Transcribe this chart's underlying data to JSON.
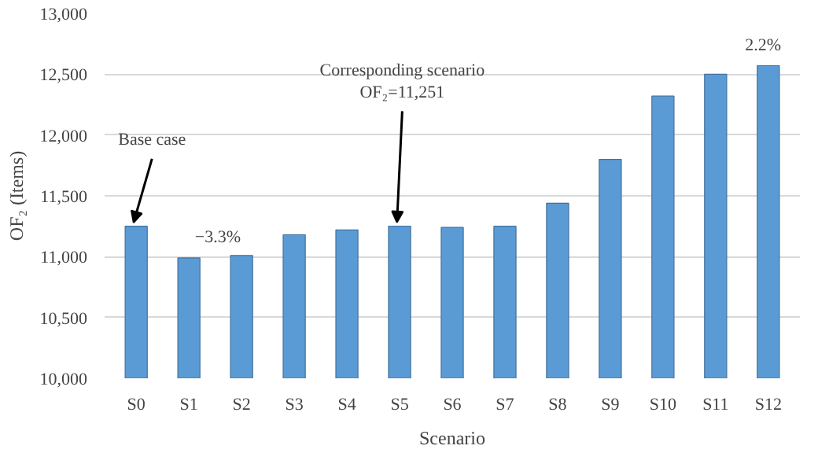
{
  "chart_data": {
    "type": "bar",
    "xlabel": "Scenario",
    "ylabel": "OF₂ (Items)",
    "categories": [
      "S0",
      "S1",
      "S2",
      "S3",
      "S4",
      "S5",
      "S6",
      "S7",
      "S8",
      "S9",
      "S10",
      "S11",
      "S12"
    ],
    "values": [
      11250,
      10990,
      11010,
      11180,
      11220,
      11251,
      11240,
      11250,
      11440,
      11800,
      12320,
      12500,
      12570
    ],
    "color": "#5b9bd5",
    "ylim": [
      10000,
      13000
    ],
    "yticks": [
      {
        "value": 10000,
        "label": "10,000"
      },
      {
        "value": 10500,
        "label": "10,500"
      },
      {
        "value": 11000,
        "label": "11,000"
      },
      {
        "value": 11500,
        "label": "11,500"
      },
      {
        "value": 12000,
        "label": "12,000"
      },
      {
        "value": 12500,
        "label": "12,500"
      },
      {
        "value": 13000,
        "label": "13,000"
      }
    ],
    "grid": "y",
    "annotations": [
      {
        "text": "Base case",
        "x": "S0",
        "y": 11250
      },
      {
        "text": "−3.3%",
        "x": "S1",
        "y": 10990
      },
      {
        "text": "Corresponding scenario\nOF₂=11,251",
        "x": "S5",
        "y": 11251
      },
      {
        "text": "2.2%",
        "x": "S12",
        "y": 12570
      }
    ]
  }
}
